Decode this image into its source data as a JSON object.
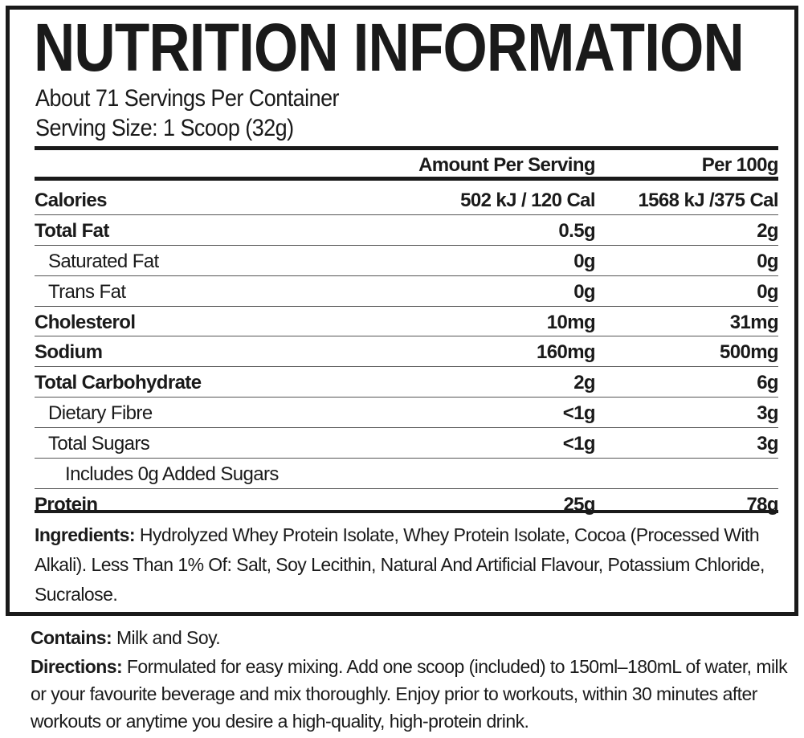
{
  "title": "NUTRITION INFORMATION",
  "servings_per_container": "About 71 Servings Per Container",
  "serving_size": "Serving Size: 1 Scoop (32g)",
  "columns": {
    "amount": "Amount Per Serving",
    "per100": "Per 100g"
  },
  "rows": [
    {
      "name": "Calories",
      "amount": "502 kJ / 120 Cal",
      "per100": "1568 kJ /375  Cal"
    },
    {
      "name": "Total Fat",
      "amount": "0.5g",
      "per100": "2g"
    },
    {
      "name": "Saturated Fat",
      "amount": "0g",
      "per100": "0g"
    },
    {
      "name": "Trans Fat",
      "amount": "0g",
      "per100": "0g"
    },
    {
      "name": "Cholesterol",
      "amount": "10mg",
      "per100": "31mg"
    },
    {
      "name": "Sodium",
      "amount": "160mg",
      "per100": "500mg"
    },
    {
      "name": "Total Carbohydrate",
      "amount": "2g",
      "per100": "6g"
    },
    {
      "name": "Dietary Fibre",
      "amount": "<1g",
      "per100": "3g"
    },
    {
      "name": "Total Sugars",
      "amount": "<1g",
      "per100": "3g"
    },
    {
      "name": "Includes 0g Added Sugars",
      "amount": "",
      "per100": ""
    },
    {
      "name": "Protein",
      "amount": "25g",
      "per100": "78g"
    }
  ],
  "ingredients": {
    "label": "Ingredients:",
    "text": " Hydrolyzed Whey Protein Isolate, Whey Protein Isolate, Cocoa (Processed With Alkali). Less Than 1% Of: Salt, Soy Lecithin, Natural And Artificial Flavour, Potassium Chloride, Sucralose."
  },
  "contains": {
    "label": "Contains:",
    "text": " Milk and Soy."
  },
  "directions": {
    "label": "Directions:",
    "text": " Formulated for easy mixing. Add one scoop (included) to 150ml–180mL of water, milk or your favourite beverage and mix thoroughly. Enjoy prior to workouts, within 30 minutes after workouts or anytime you desire a high-quality, high-protein drink."
  }
}
